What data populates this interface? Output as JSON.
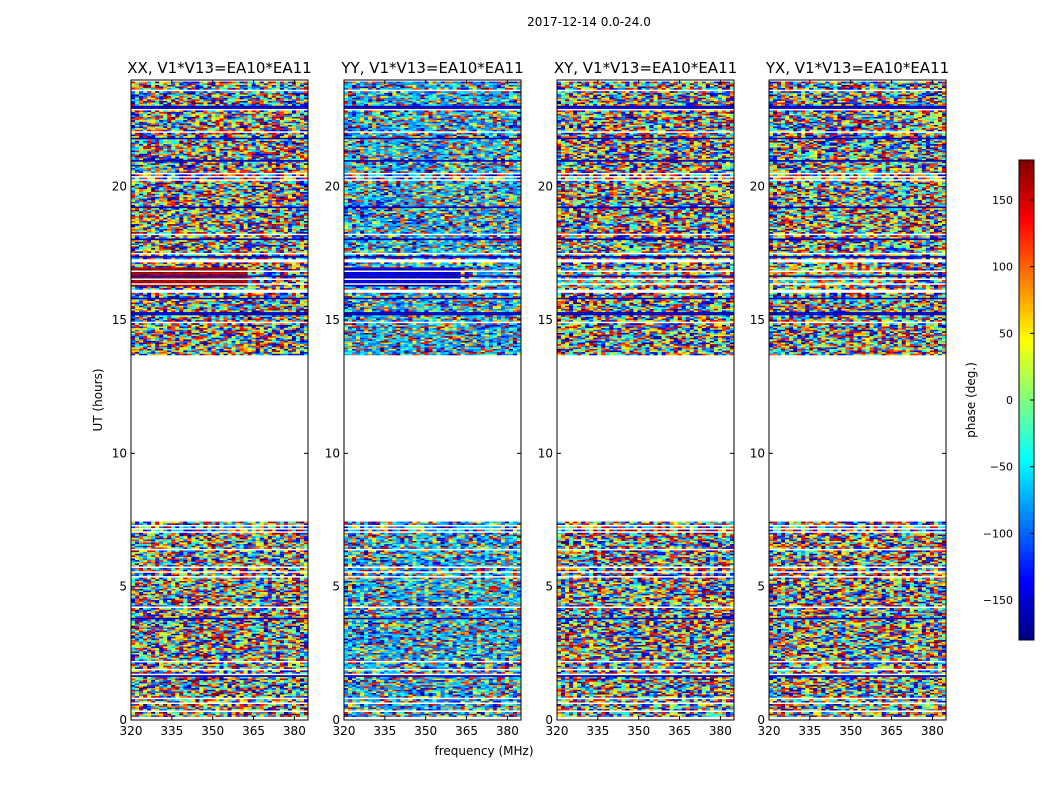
{
  "figure_title": "2017-12-14 0.0-24.0",
  "chart_data": {
    "type": "heatmap",
    "panel_titles": [
      "XX, V1*V13=EA10*EA11",
      "YY, V1*V13=EA10*EA11",
      "XY, V1*V13=EA10*EA11",
      "YX, V1*V13=EA10*EA11"
    ],
    "xlabel": "frequency (MHz)",
    "ylabel": "UT (hours)",
    "xlim": [
      320,
      385
    ],
    "ylim": [
      0,
      24
    ],
    "xticks": [
      320,
      335,
      350,
      365,
      380
    ],
    "yticks": [
      0,
      5,
      10,
      15,
      20
    ],
    "colorbar": {
      "label": "phase (deg.)",
      "range": [
        -180,
        180
      ],
      "ticks": [
        150,
        100,
        50,
        0,
        -50,
        -100,
        -150
      ],
      "tick_labels": [
        "150",
        "100",
        "50",
        "0",
        "−50",
        "−100",
        "−150"
      ],
      "colormap": "jet"
    },
    "data_gaps_ut": [
      [
        7.5,
        13.7
      ]
    ],
    "coherent_phase_segment": {
      "ut_range": [
        16.3,
        17.0
      ],
      "XX_phase_deg": 170,
      "YY_phase_deg": -150
    }
  }
}
